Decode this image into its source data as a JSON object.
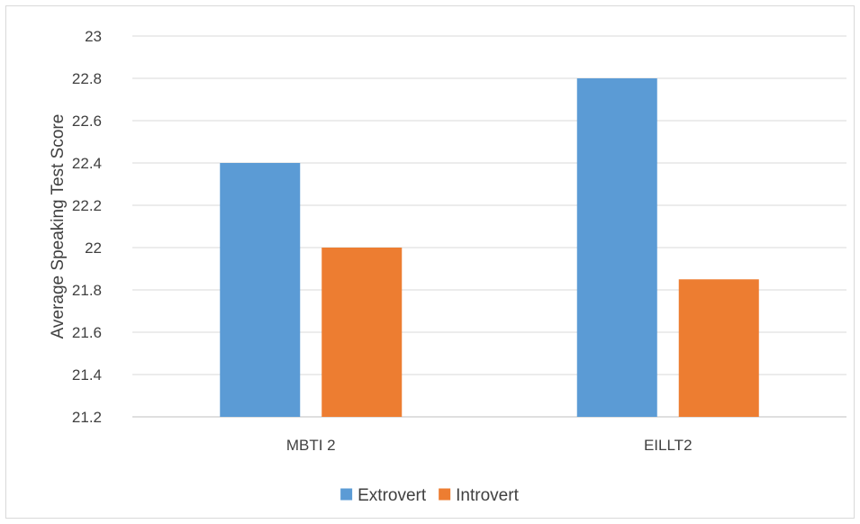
{
  "chart_data": {
    "type": "bar",
    "title": "",
    "xlabel": "",
    "ylabel": "Average Speaking Test Score",
    "categories": [
      "MBTI 2",
      "EILLT2"
    ],
    "series": [
      {
        "name": "Extrovert",
        "values": [
          22.4,
          22.8
        ],
        "color": "#5b9bd5"
      },
      {
        "name": "Introvert",
        "values": [
          22.0,
          21.85
        ],
        "color": "#ed7d31"
      }
    ],
    "ylim": [
      21.2,
      23
    ],
    "yticks": [
      "21.2",
      "21.4",
      "21.6",
      "21.8",
      "22",
      "22.2",
      "22.4",
      "22.6",
      "22.8",
      "23"
    ],
    "grid": true,
    "legend_position": "bottom"
  }
}
